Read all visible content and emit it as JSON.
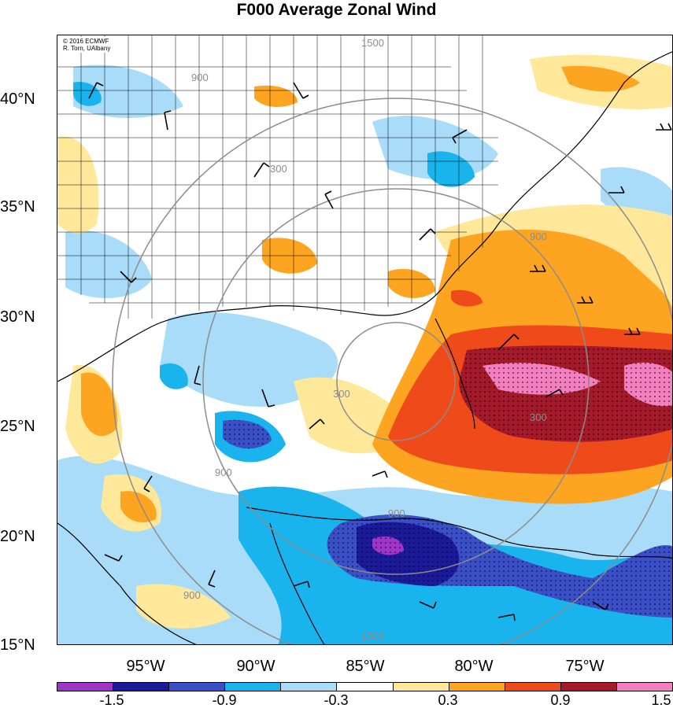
{
  "title": "F000 Average Zonal Wind",
  "credit": {
    "line1": "© 2016 ECMWF",
    "line2": "R. Torn, UAlbany"
  },
  "map": {
    "lat_labels": [
      "40°N",
      "35°N",
      "30°N",
      "25°N",
      "20°N",
      "15°N"
    ],
    "lon_labels": [
      "95°W",
      "90°W",
      "85°W",
      "80°W",
      "75°W"
    ],
    "contour_labels": [
      "1500",
      "900",
      "300",
      "300",
      "900",
      "900",
      "900",
      "300",
      "900",
      "1500"
    ]
  },
  "colorbar": {
    "colors": [
      "#9e34c8",
      "#1a1a9a",
      "#3b4fc8",
      "#19b4ee",
      "#a8dcf8",
      "#ffffff",
      "#ffe89a",
      "#fda520",
      "#ee4a1a",
      "#a51a2a",
      "#f37ec0"
    ],
    "labels": [
      "-1.5",
      "-0.9",
      "-0.3",
      "0.3",
      "0.9",
      "1.5"
    ]
  }
}
